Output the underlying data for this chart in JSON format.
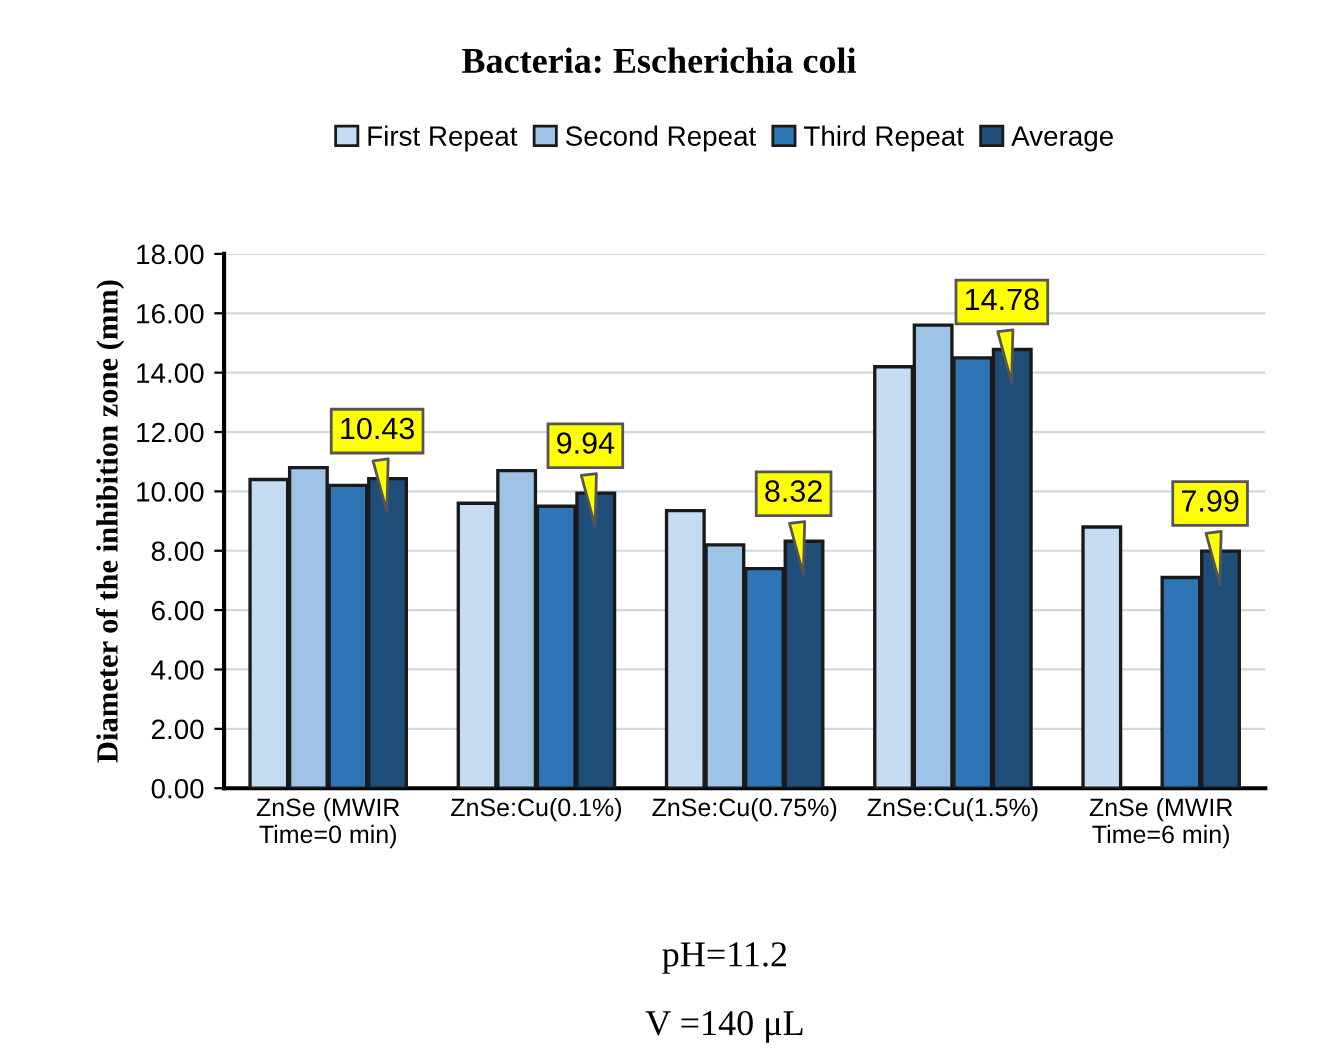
{
  "chart_data": {
    "type": "bar",
    "title": "Bacteria: Escherichia coli",
    "ylabel": "Diameter of the inhibition zone (mm)",
    "categories": [
      "ZnSe (MWIR\nTime=0 min)",
      "ZnSe:Cu(0.1%)",
      "ZnSe:Cu(0.75%)",
      "ZnSe:Cu(1.5%)",
      "ZnSe (MWIR\nTime=6 min)"
    ],
    "series": [
      {
        "name": "First Repeat",
        "color": "#c5dcf2",
        "values": [
          10.4,
          9.6,
          9.35,
          14.2,
          8.8
        ]
      },
      {
        "name": "Second Repeat",
        "color": "#9dc3e6",
        "values": [
          10.8,
          10.7,
          8.2,
          15.6,
          null
        ]
      },
      {
        "name": "Third Repeat",
        "color": "#2e75b6",
        "values": [
          10.2,
          9.5,
          7.4,
          14.5,
          7.1
        ]
      },
      {
        "name": "Average",
        "color": "#1f4e79",
        "values": [
          10.43,
          9.94,
          8.32,
          14.78,
          7.99
        ],
        "value_labels": [
          "10.43",
          "9.94",
          "8.32",
          "14.78",
          "7.99"
        ]
      }
    ],
    "ylim": [
      0,
      18
    ],
    "yticks": [
      {
        "value": 0,
        "label": "0.00"
      },
      {
        "value": 2,
        "label": "2.00"
      },
      {
        "value": 4,
        "label": "4.00"
      },
      {
        "value": 6,
        "label": "6.00"
      },
      {
        "value": 8,
        "label": "8.00"
      },
      {
        "value": 10,
        "label": "10.00"
      },
      {
        "value": 12,
        "label": "12.00"
      },
      {
        "value": 14,
        "label": "14.00"
      },
      {
        "value": 16,
        "label": "16.00"
      },
      {
        "value": 18,
        "label": "18.00"
      }
    ],
    "grid": true,
    "legend": "top",
    "annotations": [
      "pH=11.2",
      "V =140 μL"
    ]
  }
}
